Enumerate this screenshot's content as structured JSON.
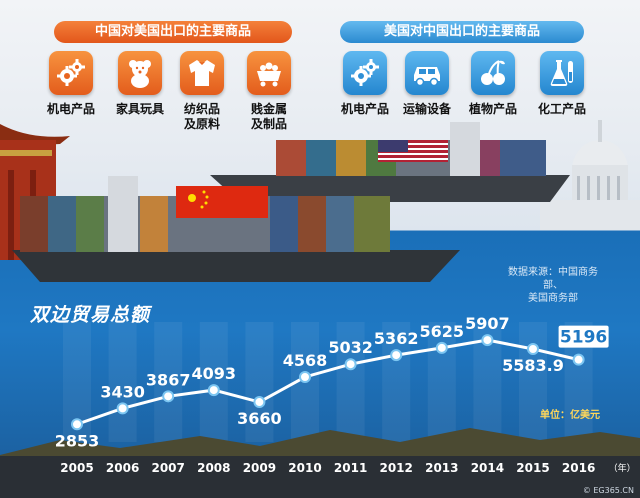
{
  "panels": {
    "left_title": "中国对美国出口的主要商品",
    "right_title": "美国对中国出口的主要商品",
    "left_items": [
      {
        "icon": "gears-icon",
        "line1": "机电产品",
        "line2": ""
      },
      {
        "icon": "teddy-bear-icon",
        "line1": "家具玩具",
        "line2": ""
      },
      {
        "icon": "sweater-icon",
        "line1": "纺织品",
        "line2": "及原料"
      },
      {
        "icon": "mine-cart-icon",
        "line1": "贱金属",
        "line2": "及制品"
      }
    ],
    "right_items": [
      {
        "icon": "gears-icon",
        "line1": "机电产品",
        "line2": ""
      },
      {
        "icon": "car-icon",
        "line1": "运输设备",
        "line2": ""
      },
      {
        "icon": "cherries-icon",
        "line1": "植物产品",
        "line2": ""
      },
      {
        "icon": "flasks-icon",
        "line1": "化工产品",
        "line2": ""
      }
    ],
    "colors": {
      "orange": "#e8641f",
      "blue": "#3397dd"
    }
  },
  "source": {
    "line1": "数据来源：中国商务部、",
    "line2": "美国商务部"
  },
  "watermark": "© EG365.CN",
  "chart_data": {
    "type": "line",
    "title": "双边贸易总额",
    "unit": "单位：亿美元",
    "x_suffix": "（年）",
    "categories": [
      "2005",
      "2006",
      "2007",
      "2008",
      "2009",
      "2010",
      "2011",
      "2012",
      "2013",
      "2014",
      "2015",
      "2016"
    ],
    "series": [
      {
        "values": [
          2853,
          3430,
          3867,
          4093,
          3660,
          4568,
          5032,
          5362,
          5625,
          5907,
          5583.9,
          5196
        ],
        "labels": [
          "2853",
          "3430",
          "3867",
          "4093",
          "3660",
          "4568",
          "5032",
          "5362",
          "5625",
          "5907",
          "5583.9",
          "5196"
        ]
      }
    ],
    "ylim": [
      2500,
      6200
    ],
    "line_color": "#ffffff",
    "highlight_last": true
  }
}
